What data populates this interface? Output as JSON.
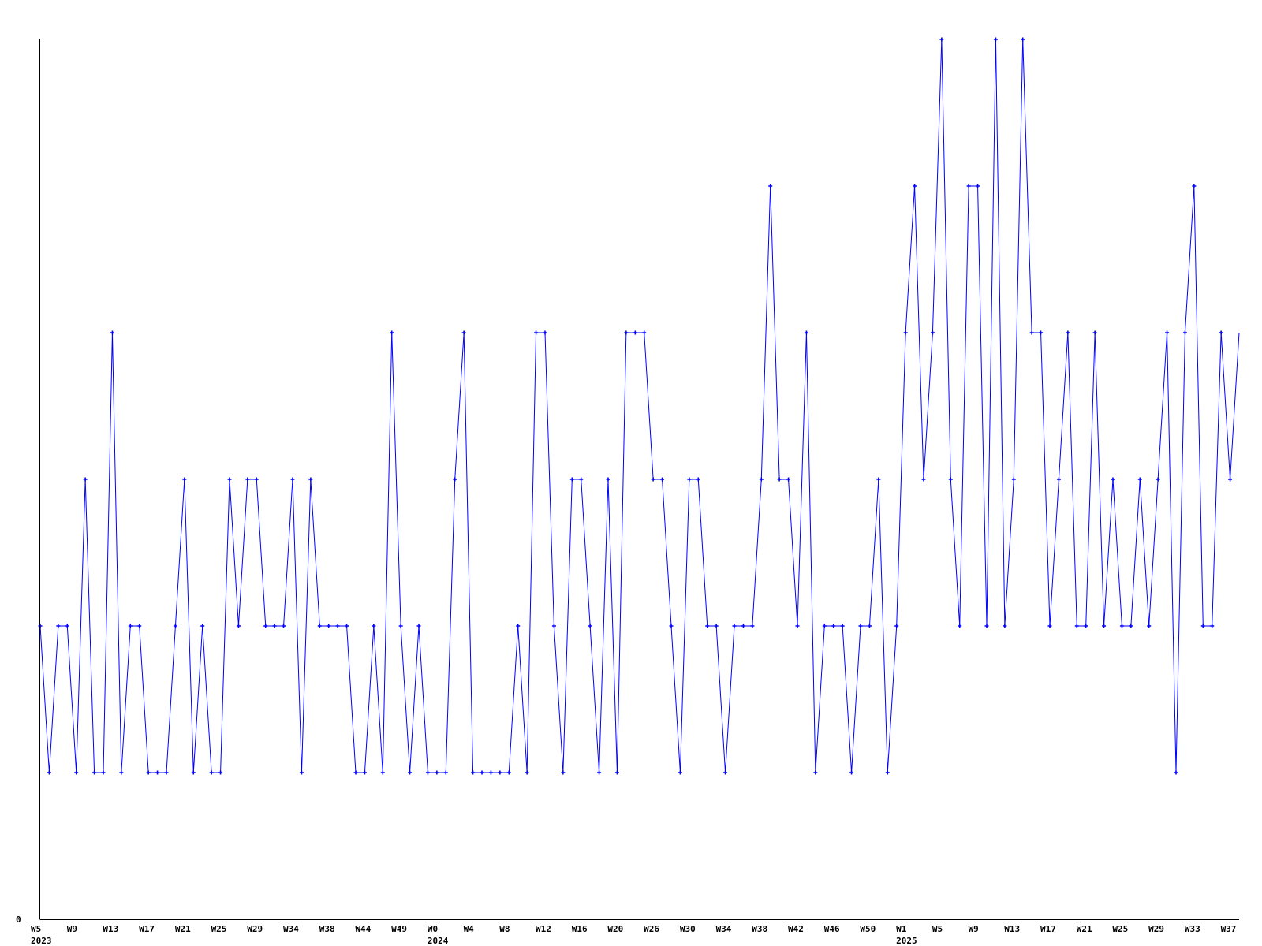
{
  "chart_data": {
    "type": "line",
    "title": "",
    "xlabel": "",
    "ylabel": "",
    "ylim": [
      0,
      6
    ],
    "y_tick_labels": [
      "0"
    ],
    "grid": false,
    "legend": "none",
    "colors": {
      "series": "#0000ff",
      "axis": "#000000"
    },
    "x_tick_every": 4,
    "x_tick_labels": [
      "W5",
      "W9",
      "W13",
      "W17",
      "W21",
      "W25",
      "W29",
      "W34",
      "W38",
      "W44",
      "W49",
      "W0",
      "W4",
      "W8",
      "W12",
      "W16",
      "W20",
      "W26",
      "W30",
      "W34",
      "W38",
      "W42",
      "W46",
      "W50",
      "W1",
      "W5",
      "W9",
      "W13",
      "W17",
      "W21",
      "W25",
      "W29",
      "W33",
      "W37"
    ],
    "year_labels": [
      {
        "label": "2023",
        "at_tick": 0
      },
      {
        "label": "2024",
        "at_tick": 11
      },
      {
        "label": "2025",
        "at_tick": 24
      }
    ],
    "series": [
      {
        "values": [
          2,
          1,
          2,
          2,
          1,
          3,
          1,
          1,
          4,
          1,
          2,
          2,
          1,
          1,
          1,
          2,
          3,
          1,
          2,
          1,
          1,
          3,
          2,
          3,
          3,
          2,
          2,
          2,
          3,
          1,
          3,
          2,
          2,
          2,
          2,
          1,
          1,
          2,
          1,
          4,
          2,
          1,
          2,
          1,
          1,
          1,
          3,
          4,
          1,
          1,
          1,
          1,
          1,
          2,
          1,
          4,
          4,
          2,
          1,
          3,
          3,
          2,
          1,
          3,
          1,
          4,
          4,
          4,
          3,
          3,
          2,
          1,
          3,
          3,
          2,
          2,
          1,
          2,
          2,
          2,
          3,
          5,
          3,
          3,
          2,
          4,
          1,
          2,
          2,
          2,
          1,
          2,
          2,
          3,
          1,
          2,
          4,
          5,
          3,
          4,
          6,
          3,
          2,
          5,
          5,
          2,
          6,
          2,
          3,
          6,
          4,
          4,
          2,
          3,
          4,
          2,
          2,
          4,
          2,
          3,
          2,
          2,
          3,
          2,
          3,
          4,
          1,
          4,
          5,
          2,
          2,
          4,
          3,
          4
        ]
      }
    ]
  }
}
